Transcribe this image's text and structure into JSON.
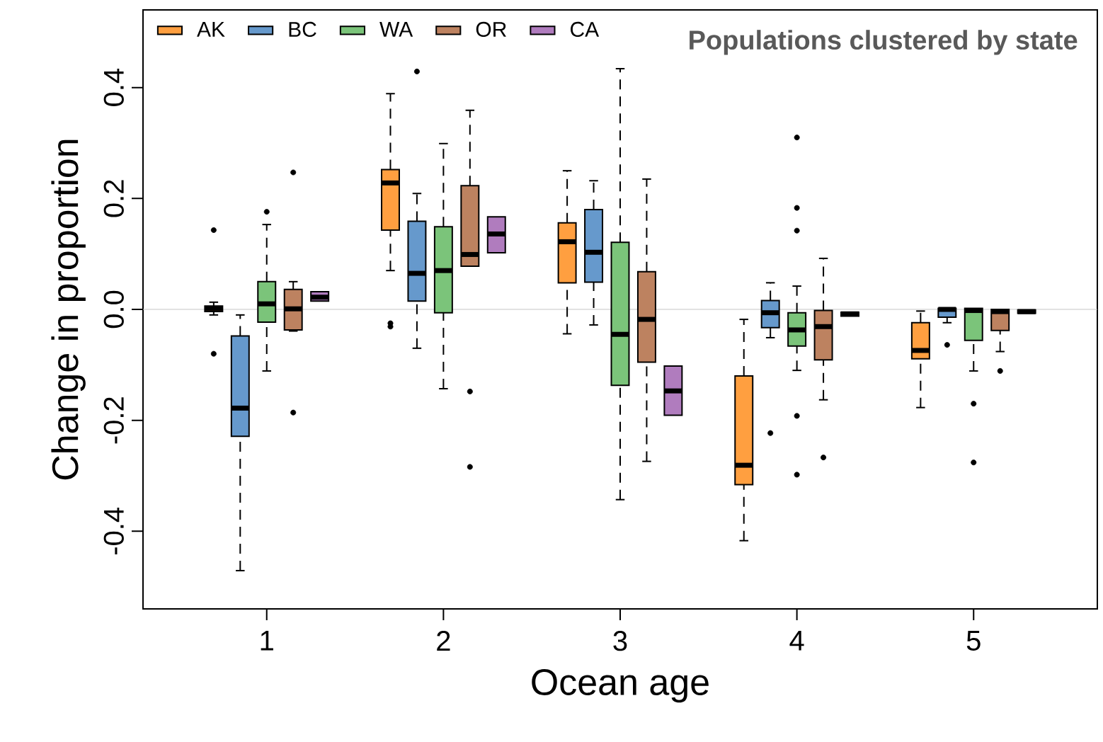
{
  "chart_data": {
    "type": "box",
    "xlabel": "Ocean age",
    "ylabel": "Change in proportion",
    "annotations": [
      "**Populations clustered by state**"
    ],
    "categories": [
      "1",
      "2",
      "3",
      "4",
      "5"
    ],
    "ylim": [
      -0.54,
      0.54
    ],
    "yticks": [
      -0.4,
      -0.2,
      {
        "value": 0,
        "label": "0.0"
      },
      0.2,
      0.4
    ],
    "legend": "top left",
    "grid": false,
    "ref_lines": [
      {
        "axis": "y",
        "value": 0,
        "color": "#bebebe"
      }
    ],
    "series": [
      {
        "name": "AK",
        "color": "#ff9f40",
        "boxes": [
          {
            "low": -0.01,
            "q1": -0.004,
            "median": 0.002,
            "q3": 0.006,
            "high": 0.013,
            "outliers": [
              0.143,
              -0.08
            ]
          },
          {
            "low": 0.07,
            "q1": 0.143,
            "median": 0.228,
            "q3": 0.252,
            "high": 0.389,
            "outliers": [
              -0.025,
              -0.031
            ]
          },
          {
            "low": -0.044,
            "q1": 0.048,
            "median": 0.122,
            "q3": 0.156,
            "high": 0.25
          },
          {
            "low": -0.417,
            "q1": -0.316,
            "median": -0.281,
            "q3": -0.12,
            "high": -0.018
          },
          {
            "low": -0.177,
            "q1": -0.089,
            "median": -0.074,
            "q3": -0.024,
            "high": -0.003
          }
        ]
      },
      {
        "name": "BC",
        "color": "#6699cc",
        "boxes": [
          {
            "low": -0.471,
            "q1": -0.229,
            "median": -0.178,
            "q3": -0.048,
            "high": -0.01
          },
          {
            "low": -0.07,
            "q1": 0.015,
            "median": 0.065,
            "q3": 0.159,
            "high": 0.209,
            "outliers": [
              0.429
            ]
          },
          {
            "low": -0.028,
            "q1": 0.049,
            "median": 0.103,
            "q3": 0.18,
            "high": 0.232
          },
          {
            "low": -0.051,
            "q1": -0.033,
            "median": -0.006,
            "q3": 0.016,
            "high": 0.048,
            "outliers": [
              -0.223
            ]
          },
          {
            "low": -0.024,
            "q1": -0.014,
            "median": 0.0,
            "q3": 0.002,
            "high": 0.002,
            "outliers": [
              -0.064
            ]
          }
        ]
      },
      {
        "name": "WA",
        "color": "#7bc47a",
        "boxes": [
          {
            "low": -0.111,
            "q1": -0.023,
            "median": 0.01,
            "q3": 0.05,
            "high": 0.153,
            "outliers": [
              0.176
            ]
          },
          {
            "low": -0.143,
            "q1": -0.006,
            "median": 0.07,
            "q3": 0.149,
            "high": 0.299
          },
          {
            "low": -0.343,
            "q1": -0.137,
            "median": -0.045,
            "q3": 0.121,
            "high": 0.434
          },
          {
            "low": -0.11,
            "q1": -0.066,
            "median": -0.037,
            "q3": -0.006,
            "high": 0.042,
            "outliers": [
              0.31,
              0.183,
              0.142,
              -0.192,
              -0.298
            ]
          },
          {
            "low": -0.111,
            "q1": -0.056,
            "median": -0.002,
            "q3": 0.002,
            "high": 0.002,
            "outliers": [
              -0.17,
              -0.276
            ]
          }
        ]
      },
      {
        "name": "OR",
        "color": "#bd8260",
        "boxes": [
          {
            "low": -0.039,
            "q1": -0.037,
            "median": 0.001,
            "q3": 0.036,
            "high": 0.05,
            "outliers": [
              0.247,
              -0.186
            ]
          },
          {
            "low": 0.078,
            "q1": 0.078,
            "median": 0.099,
            "q3": 0.223,
            "high": 0.359,
            "outliers": [
              -0.148,
              -0.284
            ]
          },
          {
            "low": -0.274,
            "q1": -0.095,
            "median": -0.018,
            "q3": 0.068,
            "high": 0.235
          },
          {
            "low": -0.163,
            "q1": -0.091,
            "median": -0.031,
            "q3": -0.002,
            "high": 0.092,
            "outliers": [
              -0.267
            ]
          },
          {
            "low": -0.076,
            "q1": -0.038,
            "median": -0.004,
            "q3": 0.0,
            "high": 0.0,
            "outliers": [
              -0.111
            ]
          }
        ]
      },
      {
        "name": "CA",
        "color": "#b07cbe",
        "boxes": [
          {
            "low": 0.015,
            "q1": 0.015,
            "median": 0.022,
            "q3": 0.032,
            "high": 0.032
          },
          {
            "low": 0.102,
            "q1": 0.102,
            "median": 0.136,
            "q3": 0.167,
            "high": 0.167
          },
          {
            "low": -0.191,
            "q1": -0.191,
            "median": -0.147,
            "q3": -0.102,
            "high": -0.102
          },
          {
            "low": -0.012,
            "q1": -0.012,
            "median": -0.008,
            "q3": -0.005,
            "high": -0.005
          },
          {
            "low": -0.007,
            "q1": -0.007,
            "median": -0.004,
            "q3": -0.001,
            "high": -0.001
          }
        ]
      }
    ]
  }
}
